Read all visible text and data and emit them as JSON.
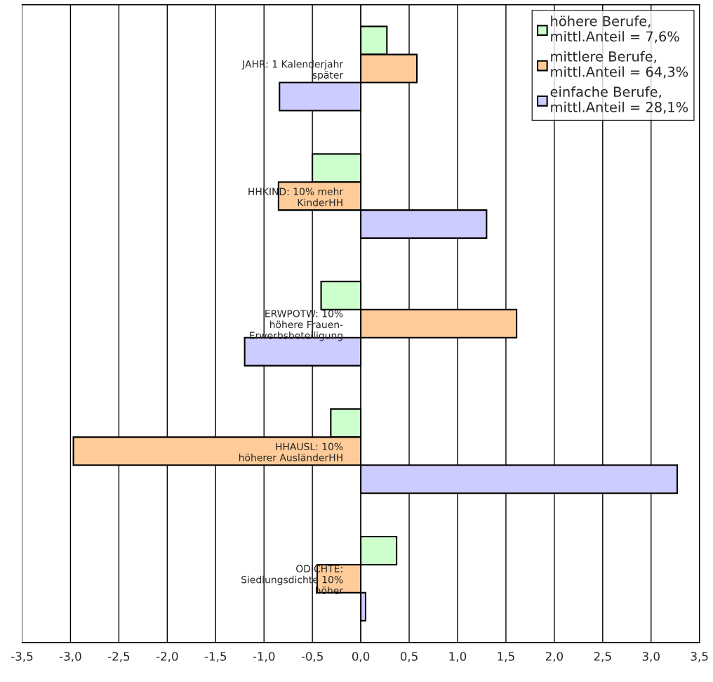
{
  "chart_data": {
    "type": "bar",
    "orientation": "horizontal",
    "categories": [
      "JAHR: 1 Kalenderjahr\nspäter",
      "HHKIND: 10% mehr\nKinderHH",
      "ERWPOTW: 10%\nhöhere Frauen-\nErwerbsbeteiligung",
      "HHAUSL: 10%\nhöherer AusländerHH",
      "ODICHTE:\nSiedlungsdichte 10%\nhöher"
    ],
    "series": [
      {
        "name": "höhere Berufe,\nmittl.Anteil = 7,6%",
        "color": "#ccffcc",
        "values": [
          0.27,
          -0.5,
          -0.41,
          -0.31,
          0.37
        ]
      },
      {
        "name": "mittlere Berufe,\nmittl.Anteil = 64,3%",
        "color": "#ffcc99",
        "values": [
          0.58,
          -0.85,
          1.61,
          -2.97,
          -0.45
        ]
      },
      {
        "name": "einfache Berufe,\nmittl.Anteil = 28,1%",
        "color": "#ccccff",
        "values": [
          -0.84,
          1.3,
          -1.2,
          3.27,
          0.05
        ]
      }
    ],
    "xlim": [
      -3.5,
      3.5
    ],
    "xticks": [
      {
        "value": -3.5,
        "label": "-3,5"
      },
      {
        "value": -3.0,
        "label": "-3,0"
      },
      {
        "value": -2.5,
        "label": "-2,5"
      },
      {
        "value": -2.0,
        "label": "-2,0"
      },
      {
        "value": -1.5,
        "label": "-1,5"
      },
      {
        "value": -1.0,
        "label": "-1,0"
      },
      {
        "value": -0.5,
        "label": "-0,5"
      },
      {
        "value": 0.0,
        "label": "0,0"
      },
      {
        "value": 0.5,
        "label": "0,5"
      },
      {
        "value": 1.0,
        "label": "1,0"
      },
      {
        "value": 1.5,
        "label": "1,5"
      },
      {
        "value": 2.0,
        "label": "2,0"
      },
      {
        "value": 2.5,
        "label": "2,5"
      },
      {
        "value": 3.0,
        "label": "3,0"
      },
      {
        "value": 3.5,
        "label": "3,5"
      }
    ],
    "grid": "x",
    "legend": "top right"
  }
}
